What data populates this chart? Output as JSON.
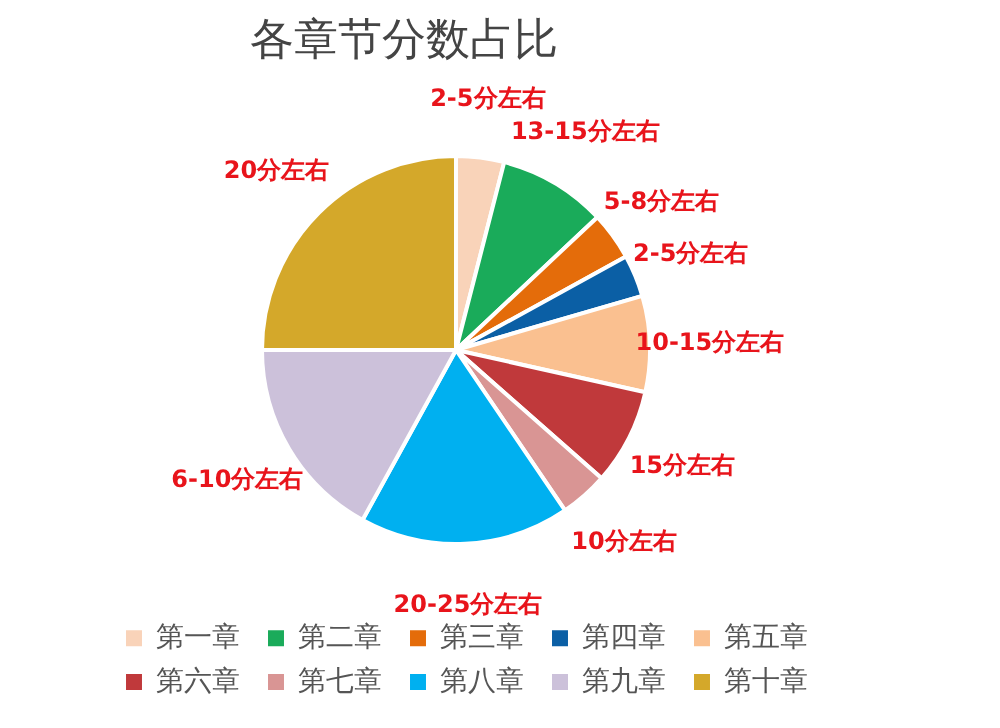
{
  "chart_data": {
    "type": "pie",
    "title": "各章节分数占比",
    "categories": [
      "第一章",
      "第二章",
      "第三章",
      "第四章",
      "第五章",
      "第六章",
      "第七章",
      "第八章",
      "第九章",
      "第十章"
    ],
    "values": [
      4,
      9,
      4,
      3.5,
      8,
      8,
      4,
      17.5,
      17,
      25
    ],
    "annotations": [
      {
        "text": "2-5分左右",
        "x": "第一章"
      },
      {
        "text": "13-15分左右",
        "x": "第二章"
      },
      {
        "text": "5-8分左右",
        "x": "第三章"
      },
      {
        "text": "2-5分左右",
        "x": "第四章"
      },
      {
        "text": "10-15分左右",
        "x": "第五章"
      },
      {
        "text": "15分左右",
        "x": "第六章"
      },
      {
        "text": "10分左右",
        "x": "第七章"
      },
      {
        "text": "20-25分左右",
        "x": "第八章"
      },
      {
        "text": "6-10分左右",
        "x": "第九章"
      },
      {
        "text": "20分左右",
        "x": "第十章"
      }
    ],
    "colors": [
      "#f9d3b9",
      "#1aab5a",
      "#e46c0a",
      "#0b5fa5",
      "#fac090",
      "#c0393b",
      "#d99594",
      "#00b0f0",
      "#ccc1da",
      "#d4a82a"
    ],
    "legend": "bottom"
  }
}
